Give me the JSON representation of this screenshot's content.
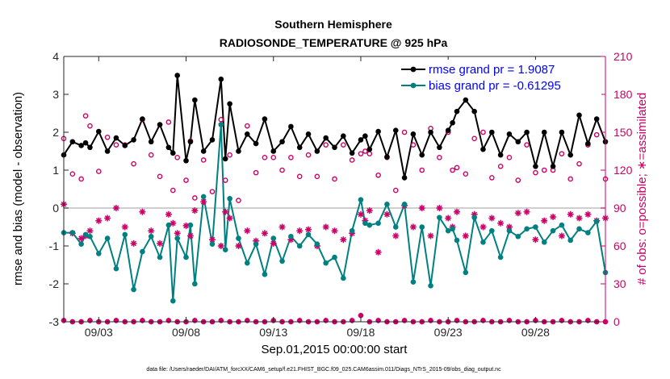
{
  "chart_data": {
    "type": "line",
    "title": "Southern Hemisphere",
    "subtitle": "RADIOSONDE_TEMPERATURE @ 925 hPa",
    "xlabel": "Sep.01,2015 00:00:00 start",
    "ylabel": "rmse and bias (model - observation)",
    "ylabel_right": "# of obs: o=possible; ∗=assimilated",
    "xlim": [
      1,
      32
    ],
    "ylim": [
      -3,
      4
    ],
    "ylim_right": [
      0,
      210
    ],
    "yticks": [
      4,
      3,
      2,
      1,
      0,
      -1,
      -2,
      -3
    ],
    "yticks_right": [
      210,
      180,
      150,
      120,
      90,
      60,
      30,
      0
    ],
    "xticks": [
      {
        "value": 3,
        "label": "09/03"
      },
      {
        "value": 8,
        "label": "09/08"
      },
      {
        "value": 13,
        "label": "09/13"
      },
      {
        "value": 18,
        "label": "09/18"
      },
      {
        "value": 23,
        "label": "09/23"
      },
      {
        "value": 28,
        "label": "09/28"
      }
    ],
    "legend_position": "top-right",
    "grid": false,
    "series": [
      {
        "name": "rmse grand pr = 1.9087",
        "color": "#000000",
        "x": [
          1.0,
          1.5,
          2.0,
          2.25,
          2.5,
          3.0,
          3.5,
          4.0,
          4.5,
          5.0,
          5.5,
          6.0,
          6.5,
          7.0,
          7.25,
          7.5,
          8.0,
          8.25,
          8.5,
          9.0,
          9.5,
          10.0,
          10.25,
          10.5,
          11.0,
          11.5,
          12.0,
          12.5,
          13.0,
          13.5,
          14.0,
          14.5,
          15.0,
          15.5,
          16.0,
          16.5,
          17.0,
          17.5,
          18.0,
          18.25,
          18.5,
          19.0,
          19.5,
          20.0,
          20.5,
          21.0,
          21.5,
          22.0,
          22.5,
          23.0,
          23.25,
          23.5,
          24.0,
          24.5,
          25.0,
          25.5,
          26.0,
          26.5,
          27.0,
          27.5,
          28.0,
          28.5,
          29.0,
          29.5,
          30.0,
          30.5,
          31.0,
          31.5,
          32.0
        ],
        "values": [
          1.4,
          1.75,
          1.65,
          1.72,
          1.6,
          2.02,
          1.5,
          1.85,
          1.65,
          1.8,
          2.35,
          1.75,
          2.2,
          1.6,
          1.45,
          3.5,
          1.25,
          1.75,
          2.85,
          1.5,
          1.8,
          3.4,
          1.3,
          2.75,
          1.5,
          1.95,
          1.7,
          2.35,
          1.5,
          1.75,
          2.15,
          1.6,
          1.95,
          1.5,
          1.85,
          1.6,
          1.9,
          1.45,
          1.8,
          1.9,
          1.55,
          2.02,
          1.35,
          2.05,
          0.8,
          1.95,
          1.4,
          2.0,
          1.6,
          2.05,
          2.25,
          2.55,
          2.85,
          2.55,
          1.55,
          2.0,
          1.4,
          1.95,
          1.75,
          2.0,
          1.1,
          2.0,
          1.1,
          2.0,
          1.4,
          2.45,
          1.7,
          2.35,
          1.75
        ]
      },
      {
        "name": "bias grand pr = -0.61295",
        "color": "#008080",
        "x": [
          1.0,
          1.5,
          2.0,
          2.25,
          2.5,
          3.0,
          3.5,
          4.0,
          4.5,
          5.0,
          5.5,
          6.0,
          6.5,
          7.0,
          7.25,
          7.5,
          8.0,
          8.25,
          8.5,
          9.0,
          9.5,
          10.0,
          10.25,
          10.5,
          11.0,
          11.5,
          12.0,
          12.5,
          13.0,
          13.5,
          14.0,
          14.5,
          15.0,
          15.5,
          16.0,
          16.5,
          17.0,
          17.5,
          18.0,
          18.25,
          18.5,
          19.0,
          19.5,
          20.0,
          20.5,
          21.0,
          21.5,
          22.0,
          22.5,
          23.0,
          23.25,
          23.5,
          24.0,
          24.5,
          25.0,
          25.5,
          26.0,
          26.5,
          27.0,
          27.5,
          28.0,
          28.5,
          29.0,
          29.5,
          30.0,
          30.5,
          31.0,
          31.5,
          32.0
        ],
        "values": [
          -0.65,
          -0.65,
          -0.95,
          -0.7,
          -0.75,
          -1.2,
          -0.8,
          -1.6,
          -0.7,
          -2.15,
          -1.15,
          -0.75,
          -1.3,
          -0.45,
          -2.45,
          -0.8,
          -1.3,
          -0.45,
          -2.0,
          0.3,
          -0.95,
          2.2,
          -1.1,
          0.25,
          -0.8,
          -1.45,
          -0.95,
          -1.75,
          -0.8,
          -1.4,
          -0.75,
          -1.0,
          -0.7,
          -0.95,
          -1.45,
          -1.3,
          -1.85,
          -0.6,
          0.22,
          -0.4,
          -0.45,
          -0.4,
          0.1,
          -0.5,
          0.1,
          -1.95,
          -0.5,
          -2.05,
          -0.25,
          -0.6,
          -0.55,
          -0.85,
          -1.7,
          -0.25,
          -0.9,
          -0.6,
          -1.3,
          -0.6,
          -0.75,
          -0.55,
          -0.5,
          -0.9,
          -0.6,
          -0.45,
          -0.85,
          -0.55,
          -0.65,
          -0.35,
          -1.7
        ]
      },
      {
        "name": "possible",
        "axis": "right",
        "color": "#cc0066",
        "x": [
          1.0,
          1.5,
          2.0,
          2.25,
          2.5,
          3.0,
          3.5,
          4.0,
          4.5,
          5.0,
          5.5,
          6.0,
          6.5,
          7.0,
          7.25,
          7.5,
          8.0,
          8.25,
          8.5,
          9.0,
          9.5,
          10.0,
          10.25,
          10.5,
          11.0,
          11.5,
          12.0,
          12.5,
          13.0,
          13.5,
          14.0,
          14.5,
          15.0,
          15.5,
          16.0,
          16.5,
          17.0,
          17.5,
          18.0,
          18.25,
          18.5,
          19.0,
          19.5,
          20.0,
          20.5,
          21.0,
          21.5,
          22.0,
          22.5,
          23.0,
          23.25,
          23.5,
          24.0,
          24.5,
          25.0,
          25.5,
          26.0,
          26.5,
          27.0,
          27.5,
          28.0,
          28.5,
          29.0,
          29.5,
          30.0,
          30.5,
          31.0,
          31.5,
          32.0
        ],
        "values": [
          145,
          117,
          113,
          163,
          155,
          119,
          146,
          140,
          140,
          125,
          160,
          132,
          115,
          158,
          104,
          130,
          112,
          143,
          98,
          128,
          103,
          160,
          112,
          132,
          96,
          155,
          118,
          130,
          130,
          120,
          130,
          115,
          132,
          115,
          140,
          113,
          140,
          128,
          133,
          135,
          133,
          116,
          130,
          104,
          150,
          140,
          120,
          153,
          130,
          150,
          120,
          122,
          117,
          145,
          150,
          114,
          123,
          130,
          112,
          140,
          118,
          120,
          120,
          133,
          113,
          125,
          140,
          148,
          113
        ]
      },
      {
        "name": "assimilated",
        "axis": "right",
        "color": "#cc0066",
        "x": [
          1.0,
          1.5,
          2.0,
          2.25,
          2.5,
          3.0,
          3.5,
          4.0,
          4.5,
          5.0,
          5.5,
          6.0,
          6.5,
          7.0,
          7.25,
          7.5,
          8.0,
          8.25,
          8.5,
          9.0,
          9.5,
          10.0,
          10.25,
          10.5,
          11.0,
          11.5,
          12.0,
          12.5,
          13.0,
          13.5,
          14.0,
          14.5,
          15.0,
          15.5,
          16.0,
          16.5,
          17.0,
          17.5,
          18.0,
          18.25,
          18.5,
          19.0,
          19.5,
          20.0,
          20.5,
          21.0,
          21.5,
          22.0,
          22.5,
          23.0,
          23.25,
          23.5,
          24.0,
          24.5,
          25.0,
          25.5,
          26.0,
          26.5,
          27.0,
          27.5,
          28.0,
          28.5,
          29.0,
          29.5,
          30.0,
          30.5,
          31.0,
          31.5,
          32.0
        ],
        "values": [
          93,
          70,
          66,
          68,
          72,
          80,
          82,
          90,
          75,
          62,
          87,
          72,
          62,
          85,
          78,
          70,
          76,
          68,
          88,
          95,
          65,
          60,
          87,
          82,
          60,
          72,
          64,
          70,
          62,
          75,
          65,
          72,
          73,
          60,
          75,
          72,
          65,
          70,
          85,
          80,
          88,
          55,
          85,
          68,
          92,
          75,
          90,
          68,
          90,
          82,
          75,
          87,
          68,
          85,
          75,
          82,
          78,
          75,
          86,
          87,
          65,
          80,
          83,
          68,
          85,
          82,
          85,
          80,
          82
        ]
      }
    ],
    "possible_baseline": {
      "axis": "right",
      "color": "#cc0066",
      "x": [
        1.0,
        1.5,
        2.0,
        2.5,
        3.0,
        3.5,
        4.0,
        4.5,
        5.0,
        5.5,
        6.0,
        6.5,
        7.0,
        7.5,
        8.0,
        8.5,
        9.0,
        9.5,
        10.0,
        10.5,
        11.0,
        11.5,
        12.0,
        12.5,
        13.0,
        13.5,
        14.0,
        14.5,
        15.0,
        15.5,
        16.0,
        16.5,
        17.0,
        17.5,
        18.0,
        18.5,
        19.0,
        19.5,
        20.0,
        20.5,
        21.0,
        21.5,
        22.0,
        22.5,
        23.0,
        23.5,
        24.0,
        24.5,
        25.0,
        25.5,
        26.0,
        26.5,
        27.0,
        27.5,
        28.0,
        28.5,
        29.0,
        29.5,
        30.0,
        30.5,
        31.0,
        31.5,
        32.0
      ],
      "values": [
        1,
        0,
        0,
        1,
        0,
        0,
        1,
        0,
        0,
        1,
        0,
        0,
        1,
        0,
        0,
        1,
        0,
        0,
        1,
        0,
        0,
        1,
        0,
        0,
        1,
        0,
        0,
        1,
        0,
        0,
        1,
        0,
        0,
        1,
        5,
        0,
        1,
        0,
        0,
        1,
        0,
        0,
        1,
        0,
        0,
        1,
        0,
        0,
        1,
        0,
        0,
        1,
        0,
        0,
        1,
        0,
        0,
        1,
        0,
        0,
        1,
        0,
        0
      ]
    }
  },
  "footer": "data file: /Users/raeder/DAI/ATM_forcXX/CAM6_setup/f.e21.FHIST_BGC.f09_025.CAM6assim.011/Diags_NTrS_2015-09/obs_diag_output.nc"
}
